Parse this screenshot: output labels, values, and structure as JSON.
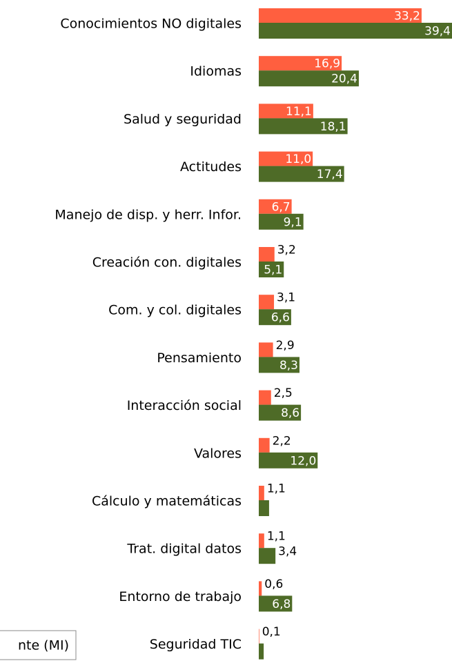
{
  "chart_data": {
    "type": "bar",
    "orientation": "horizontal",
    "categories": [
      "Conocimientos NO digitales",
      "Idiomas",
      "Salud y seguridad",
      "Actitudes",
      "Manejo de disp. y herr. Infor.",
      "Creación con. digitales",
      "Com. y col. digitales",
      "Pensamiento",
      "Interacción social",
      "Valores",
      "Cálculo y matemáticas",
      "Trat. digital datos",
      "Entorno de trabajo",
      "Seguridad TIC"
    ],
    "series": [
      {
        "color": "#ff5f3f",
        "values": [
          33.2,
          16.9,
          11.1,
          11.0,
          6.7,
          3.2,
          3.1,
          2.9,
          2.5,
          2.2,
          1.1,
          1.1,
          0.6,
          0.1
        ],
        "value_labels": [
          "33,2",
          "16,9",
          "11,1",
          "11,0",
          "6,7",
          "3,2",
          "3,1",
          "2,9",
          "2,5",
          "2,2",
          "1,1",
          "1,1",
          "0,6",
          "0,1"
        ]
      },
      {
        "color": "#4e6b27",
        "values": [
          39.4,
          20.4,
          18.1,
          17.4,
          9.1,
          5.1,
          6.6,
          8.3,
          8.6,
          12.0,
          2.1,
          3.4,
          6.8,
          1.0
        ],
        "value_labels": [
          "39,4",
          "20,4",
          "18,1",
          "17,4",
          "9,1",
          "5,1",
          "6,6",
          "8,3",
          "8,6",
          "12,0",
          null,
          "3,4",
          "6,8",
          null
        ]
      }
    ],
    "legend_label": "nte (MI)",
    "xlim": [
      0,
      39.4
    ]
  }
}
